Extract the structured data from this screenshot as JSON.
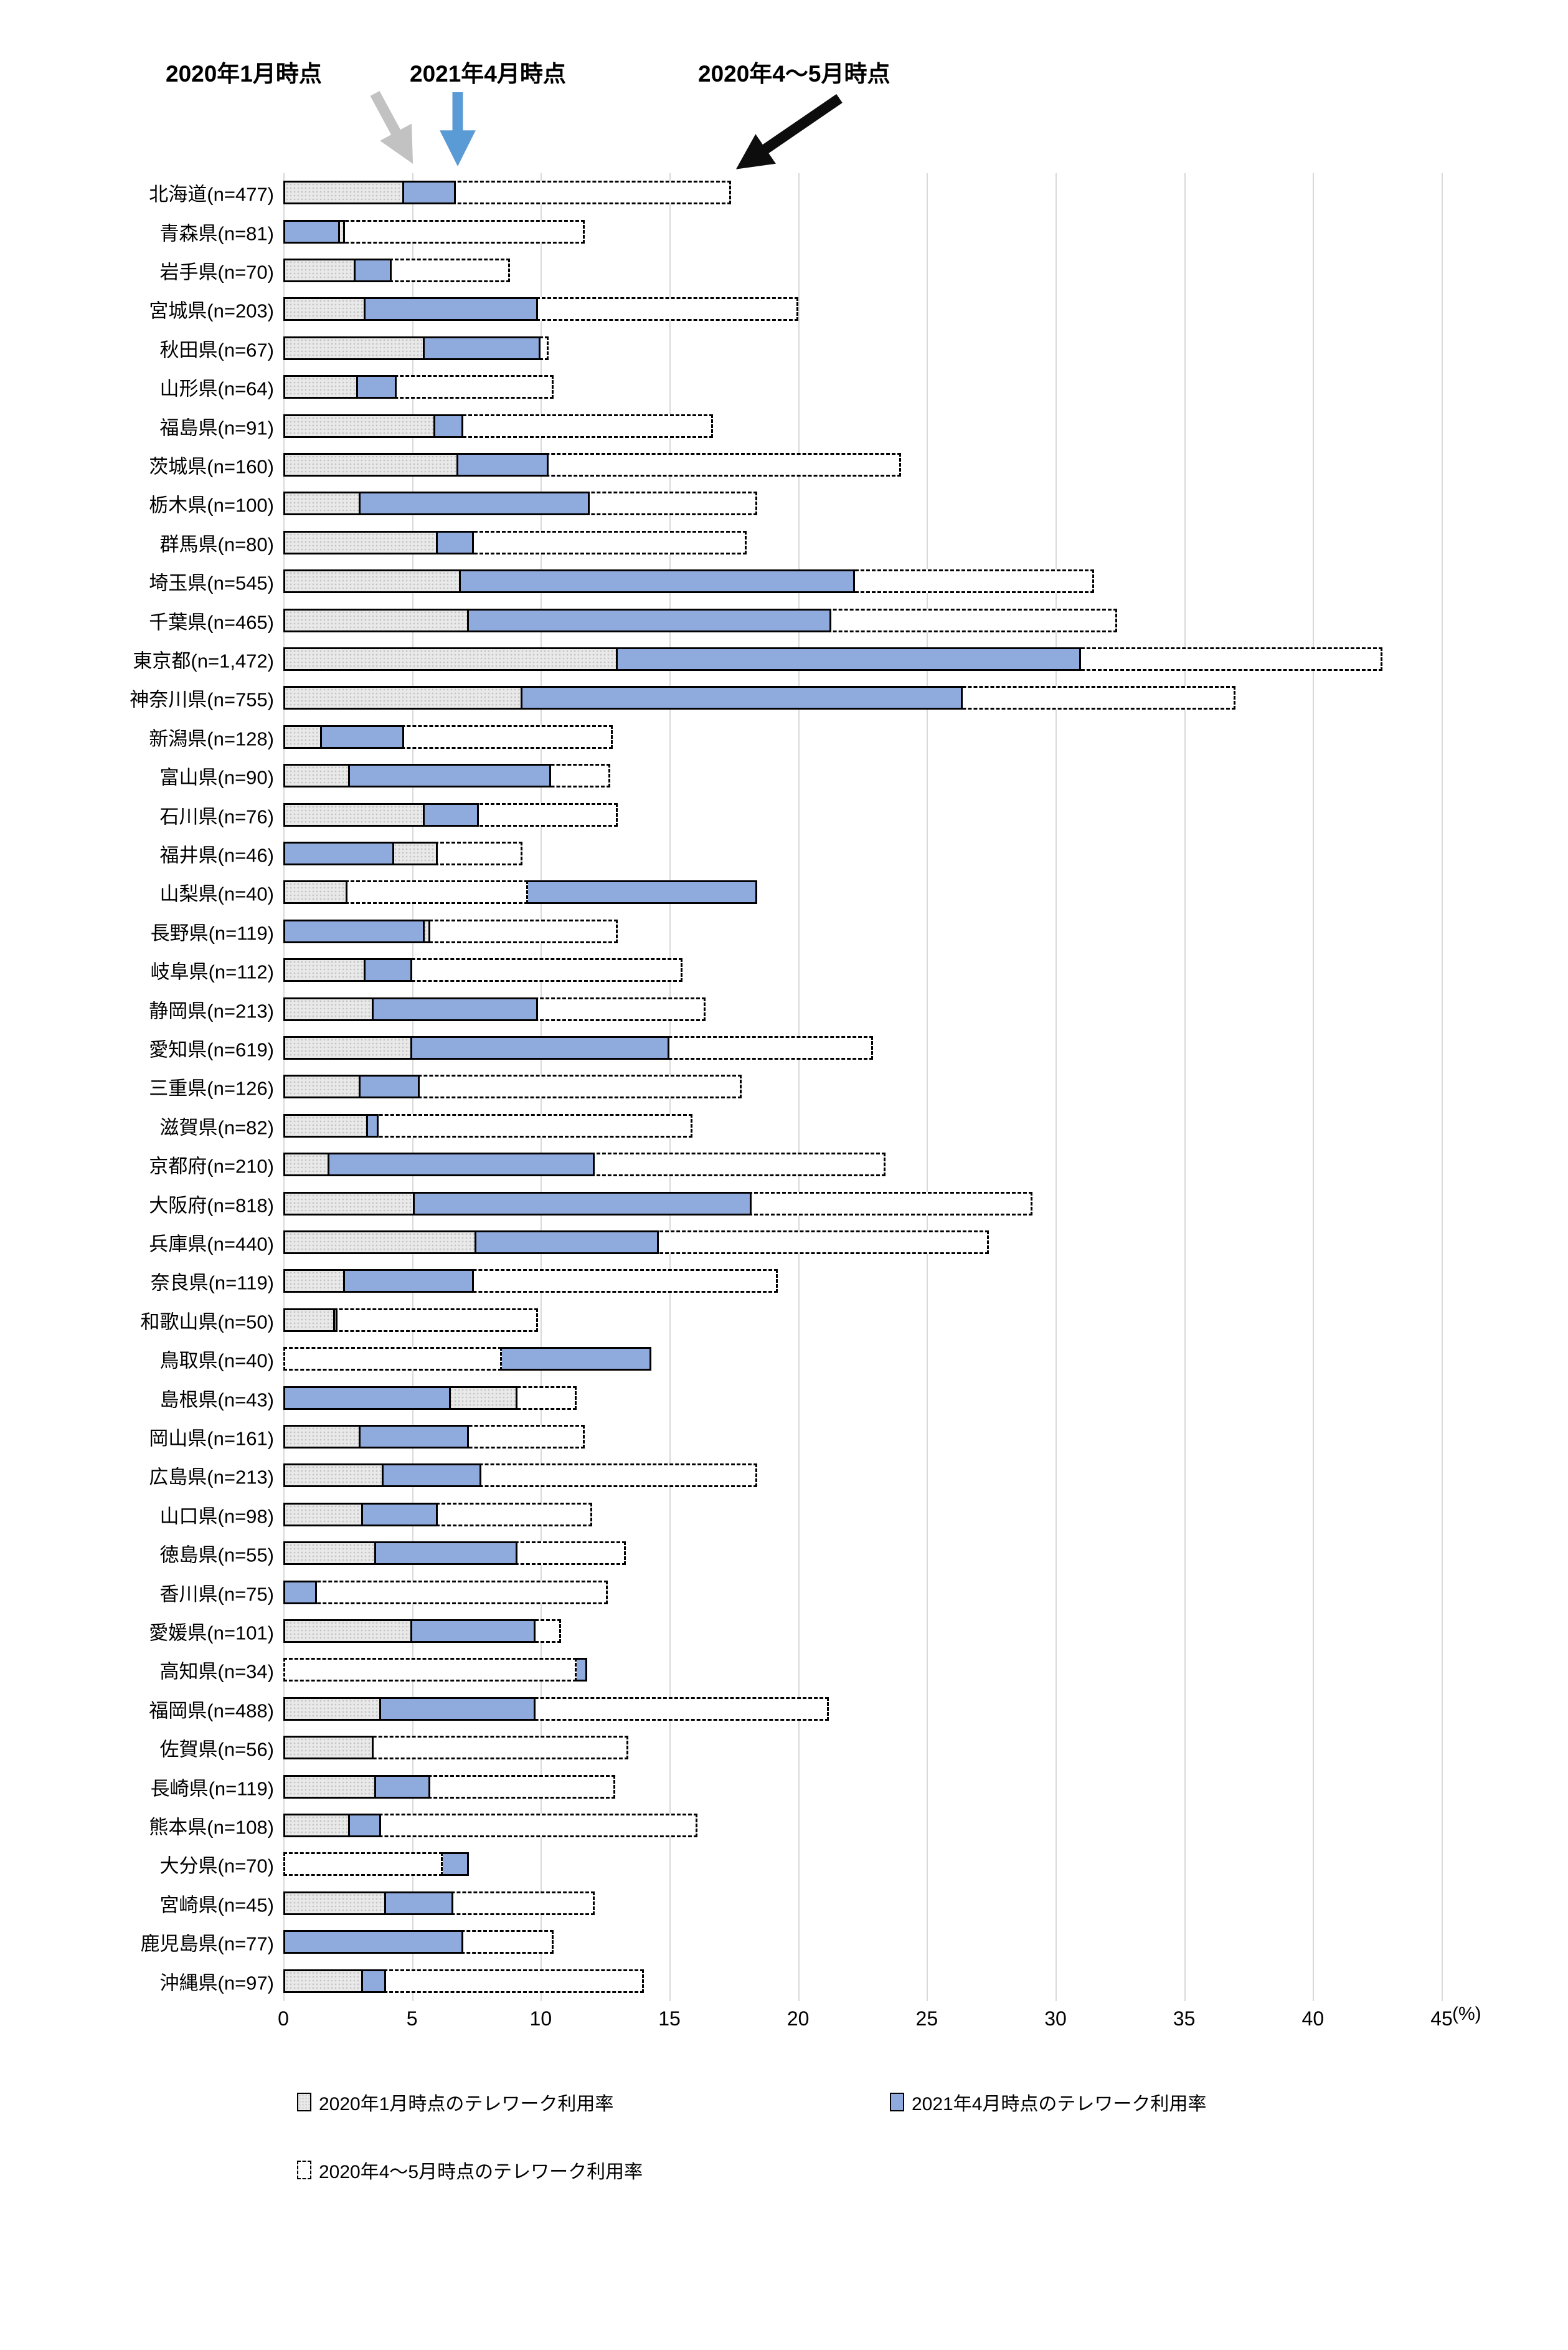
{
  "annotations": {
    "jan2020": "2020年1月時点",
    "apr2021": "2021年4月時点",
    "aprmay2020": "2020年4～5月時点"
  },
  "axis": {
    "ticks": [
      0,
      5,
      10,
      15,
      20,
      25,
      30,
      35,
      40,
      45
    ],
    "unit": "(%)",
    "max": 45
  },
  "legend": [
    {
      "label": "2020年1月時点のテレワーク利用率"
    },
    {
      "label": "2021年4月時点のテレワーク利用率"
    },
    {
      "label": "2020年4～5月時点のテレワーク利用率"
    }
  ],
  "colors": {
    "gray_fill": "#e9e9e9",
    "gray_dot": "#c4c4c4",
    "blue_fill": "#8faadc",
    "grid": "#d9d9d9",
    "gray_arrow": "#c2c2c2",
    "blue_arrow": "#5b9bd5",
    "black_arrow": "#0d0d0d"
  },
  "chart_data": {
    "type": "bar",
    "orientation": "horizontal",
    "title": "",
    "xlabel": "(%)",
    "ylabel": "",
    "xlim": [
      0,
      45
    ],
    "grid": true,
    "legend_position": "bottom",
    "overlap_note": "three overlapped bars per category, longest drawn behind; dashed series has white fill",
    "categories": [
      "北海道(n=477)",
      "青森県(n=81)",
      "岩手県(n=70)",
      "宮城県(n=203)",
      "秋田県(n=67)",
      "山形県(n=64)",
      "福島県(n=91)",
      "茨城県(n=160)",
      "栃木県(n=100)",
      "群馬県(n=80)",
      "埼玉県(n=545)",
      "千葉県(n=465)",
      "東京都(n=1,472)",
      "神奈川県(n=755)",
      "新潟県(n=128)",
      "富山県(n=90)",
      "石川県(n=76)",
      "福井県(n=46)",
      "山梨県(n=40)",
      "長野県(n=119)",
      "岐阜県(n=112)",
      "静岡県(n=213)",
      "愛知県(n=619)",
      "三重県(n=126)",
      "滋賀県(n=82)",
      "京都府(n=210)",
      "大阪府(n=818)",
      "兵庫県(n=440)",
      "奈良県(n=119)",
      "和歌山県(n=50)",
      "鳥取県(n=40)",
      "島根県(n=43)",
      "岡山県(n=161)",
      "広島県(n=213)",
      "山口県(n=98)",
      "徳島県(n=55)",
      "香川県(n=75)",
      "愛媛県(n=101)",
      "高知県(n=34)",
      "福岡県(n=488)",
      "佐賀県(n=56)",
      "長崎県(n=119)",
      "熊本県(n=108)",
      "大分県(n=70)",
      "宮崎県(n=45)",
      "鹿児島県(n=77)",
      "沖縄県(n=97)"
    ],
    "series": [
      {
        "name": "2020年1月時点のテレワーク利用率",
        "values": [
          4.7,
          2.4,
          2.8,
          3.2,
          5.5,
          2.9,
          5.9,
          6.8,
          3.0,
          6.0,
          6.9,
          7.2,
          13.0,
          9.3,
          1.5,
          2.6,
          5.5,
          6.0,
          2.5,
          5.7,
          3.2,
          3.5,
          5.0,
          3.0,
          3.3,
          1.8,
          5.1,
          7.5,
          2.4,
          2.0,
          0,
          9.1,
          3.0,
          3.9,
          3.1,
          3.6,
          0,
          5.0,
          0,
          3.8,
          3.5,
          3.6,
          2.6,
          0,
          4.0,
          0,
          3.1
        ]
      },
      {
        "name": "2021年4月時点のテレワーク利用率",
        "values": [
          6.7,
          2.2,
          4.2,
          9.9,
          10.0,
          4.4,
          7.0,
          10.3,
          11.9,
          7.4,
          22.2,
          21.3,
          31.0,
          26.4,
          4.7,
          10.4,
          7.6,
          4.3,
          18.4,
          5.5,
          5.0,
          9.9,
          15.0,
          5.3,
          3.7,
          12.1,
          18.2,
          14.6,
          7.4,
          2.1,
          14.3,
          6.5,
          7.2,
          7.7,
          6.0,
          9.1,
          1.3,
          9.8,
          11.8,
          9.8,
          0,
          5.7,
          3.8,
          7.2,
          6.6,
          7.0,
          4.0
        ]
      },
      {
        "name": "2020年4～5月時点のテレワーク利用率",
        "values": [
          17.4,
          11.7,
          8.8,
          20.0,
          10.3,
          10.5,
          16.7,
          24.0,
          18.4,
          18.0,
          31.5,
          32.4,
          42.7,
          37.0,
          12.8,
          12.7,
          13.0,
          9.3,
          9.5,
          13.0,
          15.5,
          16.4,
          22.9,
          17.8,
          15.9,
          23.4,
          29.1,
          27.4,
          19.2,
          9.9,
          8.5,
          11.4,
          11.7,
          18.4,
          12.0,
          13.3,
          12.6,
          10.8,
          11.4,
          21.2,
          13.4,
          12.9,
          16.1,
          6.2,
          12.1,
          10.5,
          14.0
        ]
      }
    ]
  }
}
